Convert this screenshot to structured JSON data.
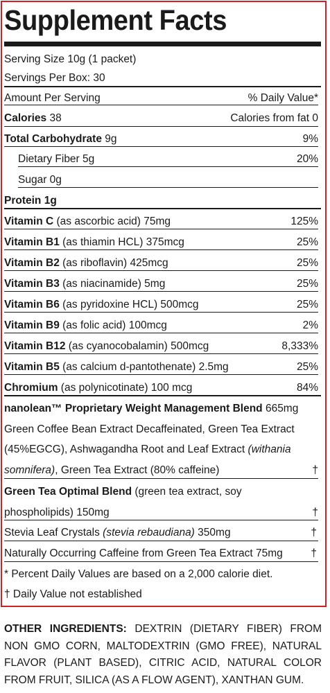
{
  "title": "Supplement Facts",
  "serving_size": "Serving Size 10g (1 packet)",
  "servings_per_box": "Servings Per Box: 30",
  "header": {
    "left": "Amount Per Serving",
    "right": "% Daily Value*"
  },
  "calories": {
    "label": "Calories",
    "value": " 38",
    "right": "Calories from fat 0"
  },
  "rows": [
    {
      "name": "Total Carbohydrate",
      "detail": " 9g",
      "dv": "9%"
    },
    {
      "name": "",
      "detail": "Dietary Fiber 5g",
      "dv": "20%"
    },
    {
      "name": "",
      "detail": "Sugar 0g",
      "dv": ""
    },
    {
      "name": "Protein 1g",
      "detail": "",
      "dv": ""
    },
    {
      "name": "Vitamin C",
      "detail": " (as ascorbic acid) 75mg",
      "dv": "125%"
    },
    {
      "name": "Vitamin B1",
      "detail": " (as thiamin HCL) 375mcg",
      "dv": "25%"
    },
    {
      "name": "Vitamin B2",
      "detail": " (as riboflavin) 425mcg",
      "dv": "25%"
    },
    {
      "name": "Vitamin B3",
      "detail": " (as niacinamide) 5mg",
      "dv": "25%"
    },
    {
      "name": "Vitamin B6",
      "detail": " (as pyridoxine HCL) 500mcg",
      "dv": "25%"
    },
    {
      "name": "Vitamin B9",
      "detail": " (as folic acid) 100mcg",
      "dv": "2%"
    },
    {
      "name": "Vitamin B12",
      "detail": " (as cyanocobalamin) 500mcg",
      "dv": "8,333%"
    },
    {
      "name": "Vitamin B5",
      "detail": " (as calcium d-pantothenate) 2.5mg",
      "dv": "25%"
    },
    {
      "name": "Chromium",
      "detail": " (as polynicotinate) 100 mcg",
      "dv": "84%"
    }
  ],
  "blend": {
    "name": "nanolean™ Proprietary Weight Management Blend",
    "amount": " 665mg",
    "line1": "Green Coffee Bean Extract Decaffeinated, Green Tea Extract",
    "line2a": "(45%EGCG), Ashwagandha Root and Leaf Extract ",
    "line2b": "(withania",
    "line3a": "somnifera)",
    "line3b": ", Green Tea Extract (80% caffeine)",
    "dagger": "†"
  },
  "green_tea": {
    "name": "Green Tea Optimal Blend",
    "line1": " (green tea extract, soy",
    "line2": "phospholipids) 150mg",
    "dagger": "†"
  },
  "stevia": {
    "a": "Stevia Leaf Crystals ",
    "b": "(stevia rebaudiana)",
    "c": " 350mg",
    "dagger": "†"
  },
  "caffeine": {
    "text": "Naturally Occurring Caffeine from Green Tea Extract 75mg",
    "dagger": "†"
  },
  "footnote1": "* Percent Daily Values are based on a 2,000 calorie diet.",
  "footnote2": "† Daily Value not established",
  "other_ingredients": {
    "label": "OTHER INGREDIENTS:",
    "text": " DEXTRIN (DIETARY FIBER) FROM NON GMO CORN, MALTODEXTRIN (GMO FREE), NATURAL FLAVOR (PLANT BASED), CITRIC ACID, NATURAL COLOR FROM FRUIT, SILICA (AS A FLOW AGENT), XANTHAN GUM."
  },
  "colors": {
    "border": "#cf2027",
    "text": "#1a1a1a"
  }
}
